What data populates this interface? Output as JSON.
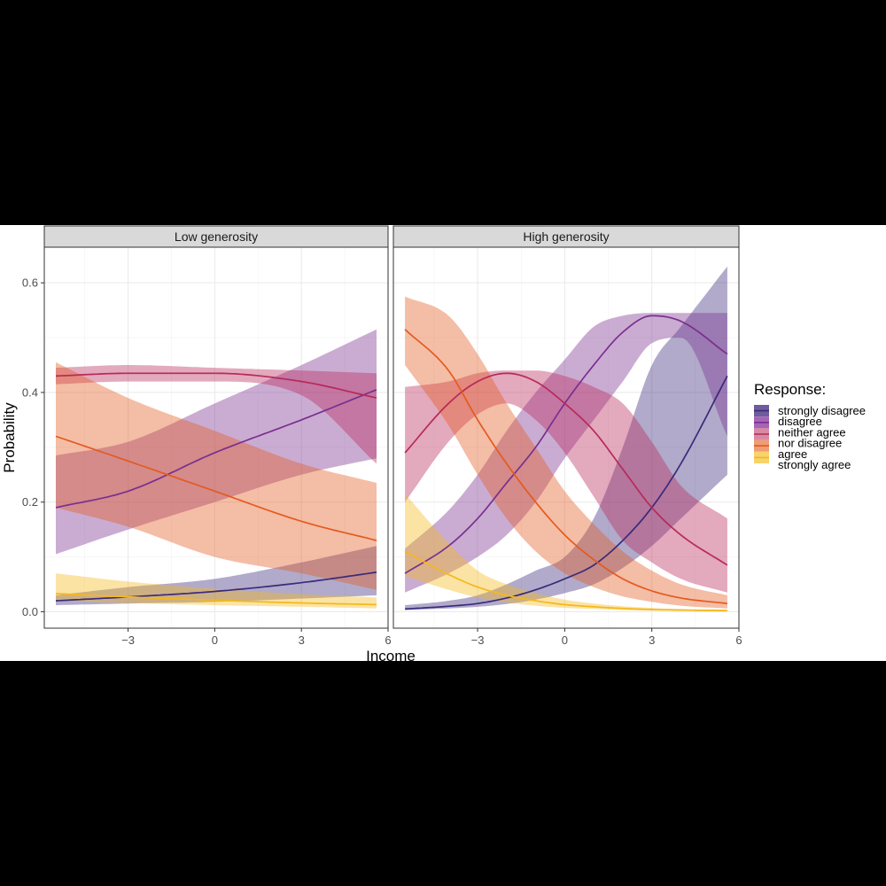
{
  "chart_data": {
    "type": "line",
    "description_style": "ribbon",
    "xlabel": "Income",
    "ylabel": "Probability",
    "xlim": [
      -5.9,
      6
    ],
    "ylim": [
      -0.03,
      0.665
    ],
    "x_ticks": [
      -3,
      0,
      3,
      6
    ],
    "x_tick_labels": [
      "-3",
      "0",
      "3",
      "6"
    ],
    "y_ticks": [
      0.0,
      0.2,
      0.4,
      0.6
    ],
    "y_tick_labels": [
      "0.0",
      "0.2",
      "0.4",
      "0.6"
    ],
    "grid": true,
    "legend_position": "right",
    "legend_title": "Response:",
    "categories": [
      {
        "key": "strongly_disagree",
        "label": "strongly disagree",
        "color": "#3b2a7a"
      },
      {
        "key": "disagree",
        "label": "disagree",
        "color": "#7a2f8f"
      },
      {
        "key": "neither_agree_nor_disagree",
        "label": [
          "neither agree",
          "nor disagree"
        ],
        "color": "#b8295a"
      },
      {
        "key": "agree",
        "label": "agree",
        "color": "#e45a1f"
      },
      {
        "key": "strongly_agree",
        "label": "strongly agree",
        "color": "#f5b81b"
      }
    ],
    "legend_key_colors": [
      "#6e5c9c",
      "#a764b5",
      "#d98aa3",
      "#ee9d74",
      "#f7d36b"
    ],
    "panels": [
      {
        "title": "Low generosity",
        "x": [
          -5.5,
          -3,
          0,
          3,
          5.6
        ],
        "series": [
          {
            "key": "strongly_disagree",
            "fit": [
              0.02,
              0.027,
              0.037,
              0.053,
              0.072
            ],
            "lower": [
              0.012,
              0.015,
              0.018,
              0.024,
              0.03
            ],
            "upper": [
              0.03,
              0.045,
              0.06,
              0.09,
              0.12
            ]
          },
          {
            "key": "disagree",
            "fit": [
              0.19,
              0.22,
              0.29,
              0.35,
              0.405
            ],
            "lower": [
              0.105,
              0.15,
              0.2,
              0.25,
              0.28
            ],
            "upper": [
              0.285,
              0.31,
              0.38,
              0.45,
              0.515
            ]
          },
          {
            "key": "neither_agree_nor_disagree",
            "fit": [
              0.43,
              0.435,
              0.435,
              0.42,
              0.39
            ],
            "lower": [
              0.415,
              0.42,
              0.42,
              0.395,
              0.27
            ],
            "upper": [
              0.445,
              0.45,
              0.445,
              0.44,
              0.435
            ]
          },
          {
            "key": "agree",
            "fit": [
              0.32,
              0.275,
              0.22,
              0.165,
              0.13
            ],
            "lower": [
              0.19,
              0.155,
              0.1,
              0.07,
              0.04
            ],
            "upper": [
              0.455,
              0.39,
              0.33,
              0.27,
              0.235
            ]
          },
          {
            "key": "strongly_agree",
            "fit": [
              0.033,
              0.027,
              0.021,
              0.016,
              0.013
            ],
            "lower": [
              0.02,
              0.016,
              0.012,
              0.009,
              0.006
            ],
            "upper": [
              0.07,
              0.055,
              0.042,
              0.032,
              0.026
            ]
          }
        ]
      },
      {
        "title": "High generosity",
        "x": [
          -5.5,
          -4,
          -3,
          -2,
          -1,
          0,
          1,
          2,
          3,
          4,
          5.6
        ],
        "series": [
          {
            "key": "strongly_disagree",
            "fit": [
              0.005,
              0.01,
              0.015,
              0.025,
              0.04,
              0.06,
              0.085,
              0.13,
              0.19,
              0.27,
              0.43
            ],
            "lower": [
              0.003,
              0.006,
              0.009,
              0.014,
              0.022,
              0.034,
              0.05,
              0.08,
              0.12,
              0.17,
              0.25
            ],
            "upper": [
              0.012,
              0.02,
              0.03,
              0.05,
              0.075,
              0.1,
              0.17,
              0.3,
              0.45,
              0.52,
              0.63
            ]
          },
          {
            "key": "disagree",
            "fit": [
              0.07,
              0.12,
              0.17,
              0.235,
              0.3,
              0.38,
              0.45,
              0.51,
              0.54,
              0.53,
              0.47
            ],
            "lower": [
              0.035,
              0.07,
              0.1,
              0.14,
              0.2,
              0.28,
              0.35,
              0.42,
              0.49,
              0.5,
              0.32
            ],
            "upper": [
              0.115,
              0.185,
              0.25,
              0.33,
              0.4,
              0.46,
              0.52,
              0.54,
              0.545,
              0.545,
              0.545
            ]
          },
          {
            "key": "neither_agree_nor_disagree",
            "fit": [
              0.29,
              0.38,
              0.42,
              0.435,
              0.42,
              0.38,
              0.33,
              0.26,
              0.19,
              0.14,
              0.085
            ],
            "lower": [
              0.2,
              0.31,
              0.36,
              0.38,
              0.35,
              0.29,
              0.21,
              0.13,
              0.09,
              0.06,
              0.035
            ],
            "upper": [
              0.41,
              0.42,
              0.435,
              0.44,
              0.44,
              0.43,
              0.41,
              0.38,
              0.31,
              0.23,
              0.17
            ]
          },
          {
            "key": "agree",
            "fit": [
              0.515,
              0.44,
              0.35,
              0.27,
              0.2,
              0.14,
              0.095,
              0.06,
              0.038,
              0.025,
              0.015
            ],
            "lower": [
              0.45,
              0.34,
              0.25,
              0.17,
              0.11,
              0.07,
              0.045,
              0.028,
              0.018,
              0.011,
              0.006
            ],
            "upper": [
              0.575,
              0.54,
              0.47,
              0.38,
              0.3,
              0.22,
              0.16,
              0.11,
              0.075,
              0.05,
              0.03
            ]
          },
          {
            "key": "strongly_agree",
            "fit": [
              0.11,
              0.068,
              0.045,
              0.03,
              0.02,
              0.013,
              0.009,
              0.006,
              0.004,
              0.003,
              0.002
            ],
            "lower": [
              0.065,
              0.04,
              0.026,
              0.017,
              0.011,
              0.007,
              0.005,
              0.003,
              0.002,
              0.0015,
              0.001
            ],
            "upper": [
              0.215,
              0.125,
              0.075,
              0.05,
              0.034,
              0.022,
              0.015,
              0.01,
              0.007,
              0.005,
              0.004
            ]
          }
        ]
      }
    ]
  }
}
